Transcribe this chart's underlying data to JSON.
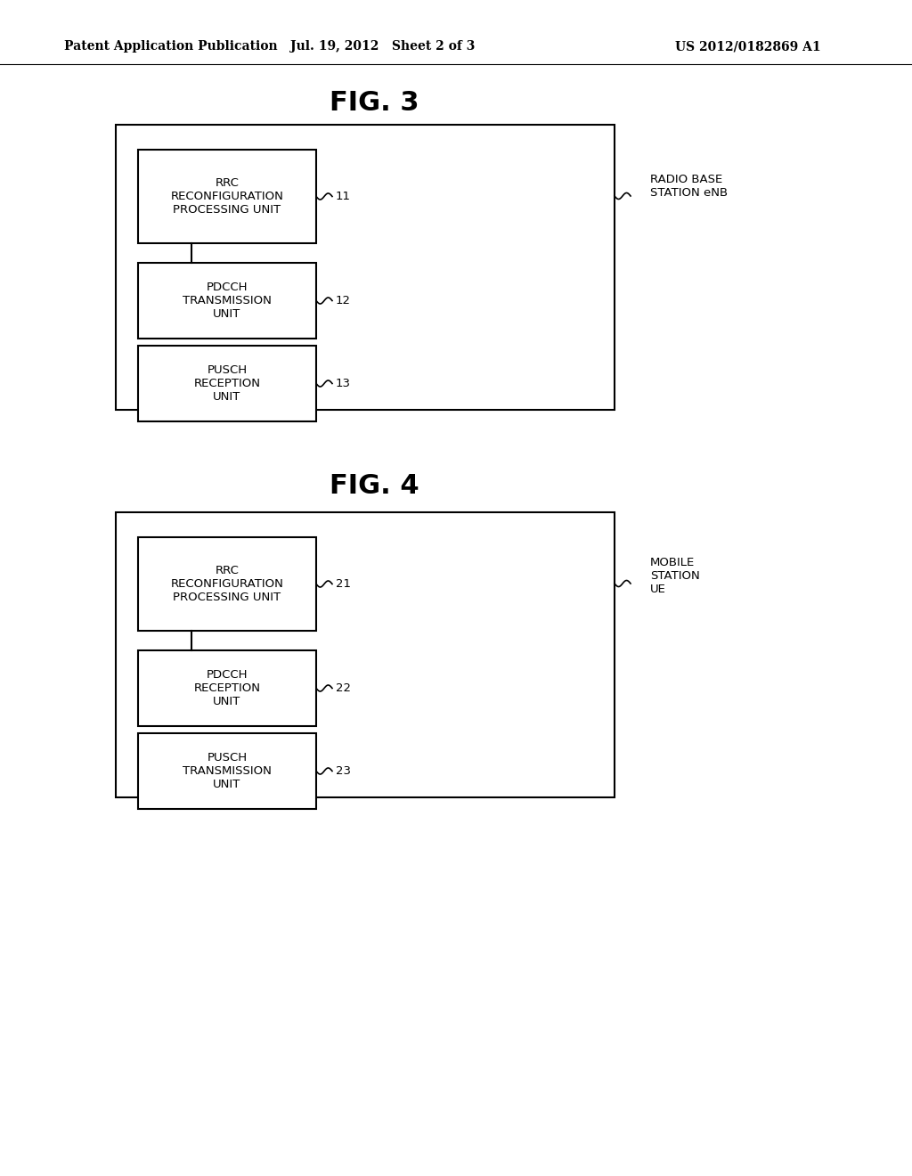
{
  "bg_color": "#ffffff",
  "text_color": "#000000",
  "header_left": "Patent Application Publication",
  "header_mid": "Jul. 19, 2012   Sheet 2 of 3",
  "header_right": "US 2012/0182869 A1",
  "fig3_title": "FIG. 3",
  "fig4_title": "FIG. 4",
  "fig3_side_label": "RADIO BASE\nSTATION eNB",
  "fig3_box1_text": "RRC\nRECONFIGURATION\nPROCESSING UNIT",
  "fig3_box1_label": "11",
  "fig3_box2_text": "PDCCH\nTRANSMISSION\nUNIT",
  "fig3_box2_label": "12",
  "fig3_box3_text": "PUSCH\nRECEPTION\nUNIT",
  "fig3_box3_label": "13",
  "fig4_side_label": "MOBILE\nSTATION\nUE",
  "fig4_box1_text": "RRC\nRECONFIGURATION\nPROCESSING UNIT",
  "fig4_box1_label": "21",
  "fig4_box2_text": "PDCCH\nRECEPTION\nUNIT",
  "fig4_box2_label": "22",
  "fig4_box3_text": "PUSCH\nTRANSMISSION\nUNIT",
  "fig4_box3_label": "23"
}
